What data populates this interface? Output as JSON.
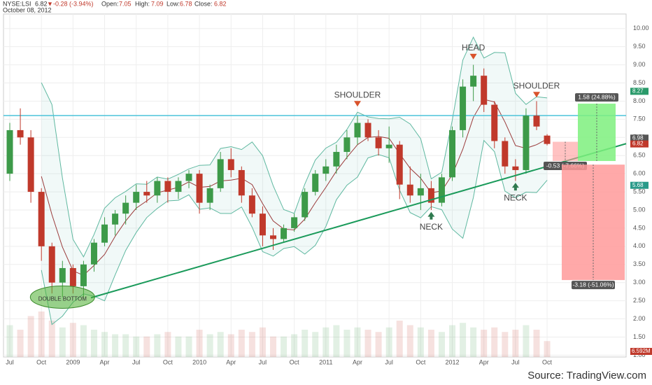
{
  "header": {
    "symbol": "NYSE:LSI",
    "last": "6.82",
    "change": "-0.28 (-3.94%)",
    "open_label": "Open:",
    "open": "7.05",
    "high_label": "High:",
    "high": "7.09",
    "low_label": "Low:",
    "low": "6.78",
    "close_label": "Close:",
    "close": "6.82",
    "date": "October 08, 2012"
  },
  "chart_data": {
    "type": "candlestick",
    "x": [
      "2008-07",
      "2008-08",
      "2008-09",
      "2008-10",
      "2008-11",
      "2008-12",
      "2009-01",
      "2009-02",
      "2009-03",
      "2009-04",
      "2009-05",
      "2009-06",
      "2009-07",
      "2009-08",
      "2009-09",
      "2009-10",
      "2009-11",
      "2009-12",
      "2010-01",
      "2010-02",
      "2010-03",
      "2010-04",
      "2010-05",
      "2010-06",
      "2010-07",
      "2010-08",
      "2010-09",
      "2010-10",
      "2010-11",
      "2010-12",
      "2011-01",
      "2011-02",
      "2011-03",
      "2011-04",
      "2011-05",
      "2011-06",
      "2011-07",
      "2011-08",
      "2011-09",
      "2011-10",
      "2011-11",
      "2011-12",
      "2012-01",
      "2012-02",
      "2012-03",
      "2012-04",
      "2012-05",
      "2012-06",
      "2012-07",
      "2012-08",
      "2012-09",
      "2012-10"
    ],
    "open": [
      6.0,
      7.2,
      7.0,
      5.5,
      4.0,
      3.0,
      3.4,
      2.9,
      3.5,
      4.1,
      4.6,
      4.9,
      5.2,
      5.5,
      5.4,
      5.8,
      5.5,
      5.8,
      6.0,
      5.2,
      5.6,
      6.4,
      6.1,
      5.4,
      4.9,
      4.3,
      4.2,
      4.5,
      4.8,
      5.5,
      6.0,
      6.2,
      6.6,
      7.0,
      7.4,
      7.0,
      6.7,
      6.8,
      5.7,
      5.4,
      5.6,
      5.2,
      5.9,
      7.2,
      8.4,
      8.7,
      7.9,
      6.9,
      6.2,
      6.1,
      7.6,
      7.05
    ],
    "high": [
      7.4,
      7.8,
      7.2,
      5.6,
      4.1,
      3.6,
      3.5,
      3.6,
      4.2,
      4.8,
      5.0,
      5.4,
      5.7,
      5.8,
      5.9,
      5.9,
      5.9,
      6.1,
      6.1,
      5.7,
      6.6,
      6.7,
      6.2,
      5.6,
      5.1,
      4.5,
      4.6,
      4.9,
      5.6,
      6.1,
      6.4,
      6.8,
      7.2,
      7.6,
      7.5,
      7.2,
      7.3,
      6.9,
      6.2,
      6.0,
      5.8,
      6.0,
      7.3,
      8.6,
      9.0,
      8.9,
      8.0,
      7.0,
      6.4,
      7.8,
      8.0,
      7.09
    ],
    "low": [
      5.8,
      6.8,
      5.2,
      3.6,
      2.7,
      2.6,
      2.7,
      2.6,
      3.3,
      4.0,
      4.3,
      4.6,
      5.0,
      5.2,
      5.2,
      5.2,
      5.3,
      5.6,
      4.9,
      5.0,
      5.5,
      5.9,
      5.2,
      4.8,
      4.0,
      3.9,
      4.1,
      4.4,
      4.7,
      5.4,
      5.8,
      6.0,
      6.4,
      6.8,
      6.9,
      6.5,
      6.3,
      5.3,
      5.2,
      5.0,
      5.0,
      5.1,
      5.8,
      7.0,
      8.0,
      7.7,
      6.7,
      6.0,
      5.8,
      6.0,
      7.2,
      6.78
    ],
    "close": [
      7.2,
      7.0,
      5.5,
      4.0,
      3.0,
      3.4,
      2.9,
      3.5,
      4.1,
      4.6,
      4.9,
      5.2,
      5.5,
      5.4,
      5.8,
      5.5,
      5.8,
      6.0,
      5.2,
      5.6,
      6.4,
      6.1,
      5.4,
      4.9,
      4.3,
      4.2,
      4.5,
      4.8,
      5.5,
      6.0,
      6.2,
      6.6,
      7.0,
      7.4,
      7.0,
      6.7,
      6.8,
      5.7,
      5.4,
      5.6,
      5.2,
      5.9,
      7.2,
      8.4,
      8.7,
      7.9,
      6.9,
      6.2,
      6.1,
      7.6,
      7.3,
      6.82
    ],
    "volume": [
      14,
      12,
      18,
      20,
      16,
      13,
      15,
      14,
      12,
      11,
      10,
      10,
      9,
      9,
      10,
      11,
      9,
      9,
      12,
      10,
      11,
      10,
      12,
      11,
      13,
      9,
      9,
      10,
      12,
      11,
      13,
      14,
      12,
      13,
      12,
      11,
      13,
      16,
      14,
      13,
      12,
      11,
      14,
      15,
      13,
      12,
      13,
      11,
      12,
      14,
      12,
      7
    ],
    "volume_lim": [
      0,
      40
    ],
    "up_color": "#3d9a49",
    "down_color": "#c0392b",
    "ylim": [
      0.95,
      10.4
    ],
    "yticks": [
      {
        "value": 10,
        "label": "10.00"
      },
      {
        "value": 9.5,
        "label": "9.50"
      },
      {
        "value": 9,
        "label": "9.00"
      },
      {
        "value": 8.5,
        "label": "8.50"
      },
      {
        "value": 8,
        "label": "8.00"
      },
      {
        "value": 7.5,
        "label": "7.50"
      },
      {
        "value": 7,
        "label": "7.00"
      },
      {
        "value": 6.5,
        "label": "6.50"
      },
      {
        "value": 6,
        "label": "6.00"
      },
      {
        "value": 5.5,
        "label": "5.50"
      },
      {
        "value": 5,
        "label": "5.00"
      },
      {
        "value": 4.5,
        "label": "4.50"
      },
      {
        "value": 4,
        "label": "4.00"
      },
      {
        "value": 3.5,
        "label": "3.50"
      },
      {
        "value": 3,
        "label": "3.00"
      },
      {
        "value": 2.5,
        "label": "2.50"
      },
      {
        "value": 2,
        "label": "2.00"
      },
      {
        "value": 1.5,
        "label": "1.50"
      },
      {
        "value": 1,
        "label": "1.00"
      }
    ],
    "xticks": [
      {
        "value": "2008-07",
        "label": "Jul"
      },
      {
        "value": "2008-10",
        "label": "Oct"
      },
      {
        "value": "2009-01",
        "label": "2009"
      },
      {
        "value": "2009-04",
        "label": "Apr"
      },
      {
        "value": "2009-07",
        "label": "Jul"
      },
      {
        "value": "2009-10",
        "label": "Oct"
      },
      {
        "value": "2010-01",
        "label": "2010"
      },
      {
        "value": "2010-04",
        "label": "Apr"
      },
      {
        "value": "2010-07",
        "label": "Jul"
      },
      {
        "value": "2010-10",
        "label": "Oct"
      },
      {
        "value": "2011-01",
        "label": "2011"
      },
      {
        "value": "2011-04",
        "label": "Apr"
      },
      {
        "value": "2011-07",
        "label": "Jul"
      },
      {
        "value": "2011-10",
        "label": "Oct"
      },
      {
        "value": "2012-01",
        "label": "2012"
      },
      {
        "value": "2012-04",
        "label": "Apr"
      },
      {
        "value": "2012-07",
        "label": "Jul"
      },
      {
        "value": "2012-10",
        "label": "Oct"
      }
    ],
    "grid": true,
    "resistance": 7.6,
    "resistance_color": "#4cc3d9",
    "trendline": {
      "color": "#1a9a5a",
      "points": [
        {
          "x": "2009-01",
          "y": 2.44
        },
        {
          "x": "2012-07",
          "y": 5.95
        }
      ]
    },
    "annotations": [
      {
        "text": "SHOULDER",
        "x": "2011-04",
        "y": 7.85,
        "arrow": "down"
      },
      {
        "text": "HEAD",
        "x": "2012-03",
        "y": 9.15,
        "arrow": "down"
      },
      {
        "text": "SHOULDER",
        "x": "2012-09",
        "y": 8.1,
        "arrow": "down"
      },
      {
        "text": "NECK",
        "x": "2011-11",
        "y": 4.95,
        "arrow": "up"
      },
      {
        "text": "NECK",
        "x": "2012-07",
        "y": 5.75,
        "arrow": "up"
      },
      {
        "text": "DOUBLE BOTTOM",
        "x": "2008-12",
        "y": 2.6,
        "arrow": "none"
      }
    ],
    "measures": [
      {
        "top": 7.93,
        "bottom": 6.35,
        "label": "1.58 (24.88%)",
        "color": "#7ef07e"
      },
      {
        "top": 6.88,
        "bottom": 6.35,
        "label": "-0.53 (-7.66%)",
        "color": "#ff9a9a"
      },
      {
        "top": 6.25,
        "bottom": 3.07,
        "label": "-3.18 (-51.06%)",
        "color": "#ff9a9a"
      }
    ],
    "price_labels": [
      {
        "value": 8.27,
        "label": "8.27",
        "color": "#2a9a6a"
      },
      {
        "value": 6.98,
        "label": "6.98",
        "color": "#555"
      },
      {
        "value": 6.82,
        "label": "6.82",
        "color": "#c0392b"
      },
      {
        "value": 5.68,
        "label": "5.68",
        "color": "#2a9a8a"
      }
    ],
    "volume_label": "6.592M",
    "source": "Source: TradingView.com"
  }
}
